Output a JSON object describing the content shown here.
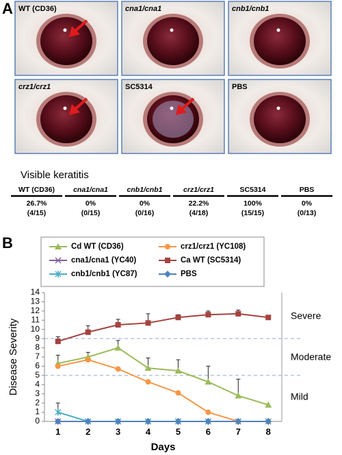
{
  "panel_a": {
    "label": "A",
    "photos": [
      "WT (CD36)",
      "cna1/cna1",
      "cnb1/cnb1",
      "crz1/crz1",
      "SC5314",
      "PBS"
    ]
  },
  "table": {
    "title": "Visible keratitis",
    "header": [
      "WT (CD36)",
      "cna1/cna1",
      "cnb1/cnb1",
      "crz1/crz1",
      "SC5314",
      "PBS"
    ],
    "rows": [
      [
        "26.7%",
        "0%",
        "0%",
        "22.2%",
        "100%",
        "0%"
      ],
      [
        "(4/15)",
        "(0/15)",
        "(0/16)",
        "(4/18)",
        "(15/15)",
        "(0/13)"
      ]
    ]
  },
  "chart_data": {
    "type": "line",
    "panel_label": "B",
    "xlabel": "Days",
    "ylabel": "Disease Severity",
    "x": [
      1,
      2,
      3,
      4,
      5,
      6,
      7,
      8
    ],
    "xlim": [
      0.55,
      8.45
    ],
    "xticks": [
      1,
      2,
      3,
      4,
      5,
      6,
      7,
      8
    ],
    "ylim": [
      0,
      14
    ],
    "yticks": [
      0,
      1,
      2,
      3,
      4,
      5,
      6,
      7,
      8,
      9,
      10,
      11,
      12,
      13,
      14
    ],
    "thresholds": [
      9,
      5
    ],
    "annotations": [
      "Severe",
      "Moderate",
      "Mild"
    ],
    "series": [
      {
        "name": "Cd WT (CD36)",
        "color": "#9bbb59",
        "marker": "triangle",
        "values": [
          6.3,
          7.0,
          8.0,
          5.8,
          5.5,
          4.3,
          2.8,
          1.8
        ],
        "errors": [
          0.9,
          0.5,
          0.8,
          1.1,
          1.2,
          1.7,
          1.8,
          0
        ]
      },
      {
        "name": "cna1/cna1 (YC40)",
        "color": "#7f5fa0",
        "marker": "x",
        "values": [
          0,
          0,
          0,
          0,
          0,
          0,
          0,
          0
        ]
      },
      {
        "name": "cnb1/cnb1 (YC87)",
        "color": "#4bacc6",
        "marker": "asterisk",
        "values": [
          1.0,
          0,
          0,
          0,
          0,
          0,
          0,
          0
        ],
        "errors": [
          1.0,
          0,
          0,
          0,
          0,
          0,
          0,
          0
        ]
      },
      {
        "name": "crz1/crz1 (YC108)",
        "color": "#f79646",
        "marker": "circle",
        "values": [
          6.0,
          6.7,
          5.7,
          4.3,
          3.1,
          1.0,
          0,
          0
        ]
      },
      {
        "name": "Ca WT (SC5314)",
        "color": "#a5423f",
        "marker": "square",
        "values": [
          8.7,
          9.7,
          10.5,
          10.7,
          11.3,
          11.6,
          11.7,
          11.3
        ],
        "errors": [
          0.5,
          0.7,
          0.6,
          1.0,
          0.3,
          0.4,
          0.4,
          0
        ]
      },
      {
        "name": "PBS",
        "color": "#4f81bd",
        "marker": "diamond",
        "values": [
          0,
          0,
          0,
          0,
          0,
          0,
          0,
          0
        ]
      }
    ]
  }
}
